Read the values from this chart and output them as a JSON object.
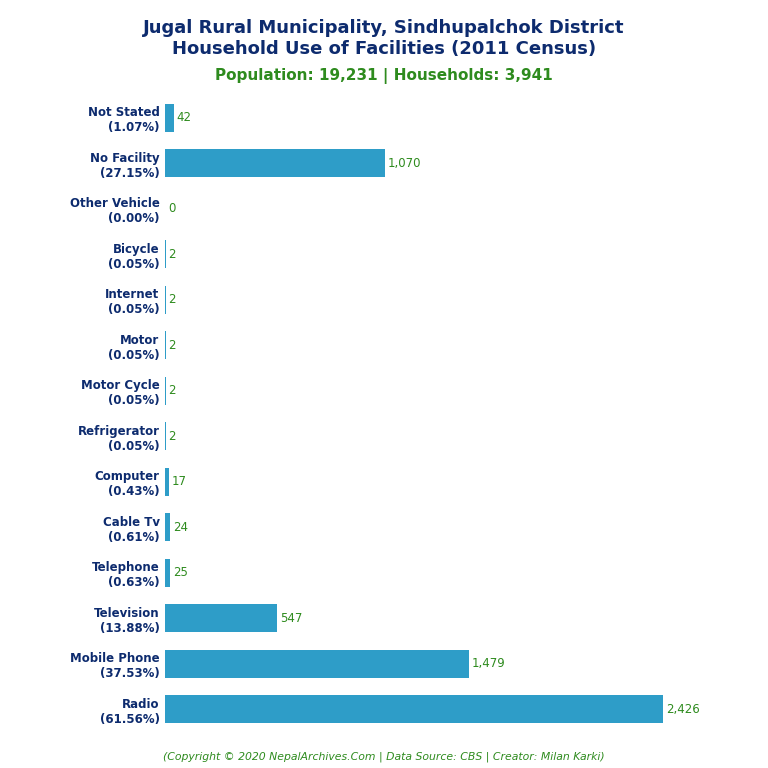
{
  "title_line1": "Jugal Rural Municipality, Sindhupalchok District",
  "title_line2": "Household Use of Facilities (2011 Census)",
  "subtitle": "Population: 19,231 | Households: 3,941",
  "footer": "(Copyright © 2020 NepalArchives.Com | Data Source: CBS | Creator: Milan Karki)",
  "categories": [
    "Not Stated\n(1.07%)",
    "No Facility\n(27.15%)",
    "Other Vehicle\n(0.00%)",
    "Bicycle\n(0.05%)",
    "Internet\n(0.05%)",
    "Motor\n(0.05%)",
    "Motor Cycle\n(0.05%)",
    "Refrigerator\n(0.05%)",
    "Computer\n(0.43%)",
    "Cable Tv\n(0.61%)",
    "Telephone\n(0.63%)",
    "Television\n(13.88%)",
    "Mobile Phone\n(37.53%)",
    "Radio\n(61.56%)"
  ],
  "values": [
    42,
    1070,
    0,
    2,
    2,
    2,
    2,
    2,
    17,
    24,
    25,
    547,
    1479,
    2426
  ],
  "value_labels": [
    "42",
    "1,070",
    "0",
    "2",
    "2",
    "2",
    "2",
    "2",
    "17",
    "24",
    "25",
    "547",
    "1,479",
    "2,426"
  ],
  "bar_color": "#2e9dc8",
  "title_color": "#0d2b6e",
  "subtitle_color": "#2e8b1e",
  "footer_color": "#2e8b1e",
  "value_color": "#2e8b1e",
  "label_color": "#0d2b6e",
  "background_color": "#ffffff",
  "xlim": [
    0,
    2750
  ]
}
